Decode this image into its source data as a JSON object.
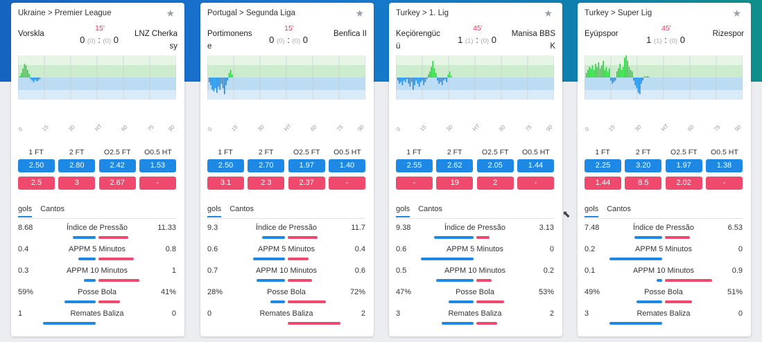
{
  "cards": [
    {
      "league": "Ukraine",
      "competition": "Premier League",
      "minute": "15'",
      "home": "Vorskla",
      "away": "LNZ Cherkasy",
      "score_home": "0",
      "score_away": "0",
      "ht_home": "0",
      "ht_away": "0",
      "odds_headers": [
        "1 FT",
        "2 FT",
        "O2.5 FT",
        "O0.5 HT"
      ],
      "odds_blue": [
        "2.50",
        "2.80",
        "2.42",
        "1.53"
      ],
      "odds_red": [
        "2.5",
        "3",
        "2.67",
        "-"
      ],
      "tabs": [
        "gols",
        "Cantos"
      ],
      "stats": [
        {
          "left": "8.68",
          "label": "Índice de Pressão",
          "right": "11.33",
          "lf": 0.43,
          "rf": 0.57
        },
        {
          "left": "0.4",
          "label": "APPM 5 Minutos",
          "right": "0.8",
          "lf": 0.33,
          "rf": 0.67
        },
        {
          "left": "0.3",
          "label": "APPM 10 Minutos",
          "right": "1",
          "lf": 0.23,
          "rf": 0.77
        },
        {
          "left": "59%",
          "label": "Posse Bola",
          "right": "41%",
          "lf": 0.59,
          "rf": 0.41
        },
        {
          "left": "1",
          "label": "Remates Baliza",
          "right": "0",
          "lf": 1.0,
          "rf": 0.0
        }
      ],
      "pressure": [
        2,
        6,
        12,
        18,
        16,
        10,
        5,
        -2,
        -4,
        -6,
        -3,
        -5,
        -4,
        -2
      ]
    },
    {
      "league": "Portugal",
      "competition": "Segunda Liga",
      "minute": "15'",
      "home": "Portimonense",
      "away": "Benfica II",
      "score_home": "0",
      "score_away": "0",
      "ht_home": "0",
      "ht_away": "0",
      "odds_headers": [
        "1 FT",
        "2 FT",
        "O2.5 FT",
        "O0.5 HT"
      ],
      "odds_blue": [
        "2.50",
        "2.70",
        "1.97",
        "1.40"
      ],
      "odds_red": [
        "3.1",
        "2.3",
        "2.37",
        "-"
      ],
      "tabs": [
        "gols",
        "Cantos"
      ],
      "stats": [
        {
          "left": "9.3",
          "label": "Índice de Pressão",
          "right": "11.7",
          "lf": 0.44,
          "rf": 0.56
        },
        {
          "left": "0.6",
          "label": "APPM 5 Minutos",
          "right": "0.4",
          "lf": 0.6,
          "rf": 0.4
        },
        {
          "left": "0.7",
          "label": "APPM 10 Minutos",
          "right": "0.6",
          "lf": 0.54,
          "rf": 0.46
        },
        {
          "left": "28%",
          "label": "Posse Bola",
          "right": "72%",
          "lf": 0.28,
          "rf": 0.72
        },
        {
          "left": "0",
          "label": "Remates Baliza",
          "right": "2",
          "lf": 0.0,
          "rf": 1.0
        }
      ],
      "pressure": [
        -6,
        -10,
        -16,
        -18,
        -14,
        -20,
        -12,
        -16,
        -8,
        -14,
        -22,
        -10,
        -4,
        6,
        10,
        4
      ]
    },
    {
      "league": "Turkey",
      "competition": "1. Lig",
      "minute": "45'",
      "home": "Keçiörengücü",
      "away": "Manisa BBSK",
      "score_home": "1",
      "score_away": "0",
      "ht_home": "1",
      "ht_away": "0",
      "odds_headers": [
        "1 FT",
        "2 FT",
        "O2.5 FT",
        "O0.5 HT"
      ],
      "odds_blue": [
        "2.55",
        "2.62",
        "2.05",
        "1.44"
      ],
      "odds_red": [
        "-",
        "19",
        "2",
        "-"
      ],
      "tabs": [
        "gols",
        "Cantos"
      ],
      "stats": [
        {
          "left": "9.38",
          "label": "Índice de Pressão",
          "right": "3.13",
          "lf": 0.75,
          "rf": 0.25
        },
        {
          "left": "0.6",
          "label": "APPM 5 Minutos",
          "right": "0",
          "lf": 1.0,
          "rf": 0.0
        },
        {
          "left": "0.5",
          "label": "APPM 10 Minutos",
          "right": "0.2",
          "lf": 0.71,
          "rf": 0.29
        },
        {
          "left": "47%",
          "label": "Posse Bola",
          "right": "53%",
          "lf": 0.47,
          "rf": 0.53
        },
        {
          "left": "3",
          "label": "Remates Baliza",
          "right": "2",
          "lf": 0.6,
          "rf": 0.4
        }
      ],
      "pressure": [
        -4,
        -8,
        -6,
        -10,
        -4,
        -6,
        -2,
        -8,
        -12,
        -6,
        -16,
        -10,
        -4,
        -8,
        -12,
        -6,
        -4,
        -10,
        -6,
        -2,
        4,
        8,
        14,
        22,
        12,
        6,
        -4,
        -8,
        -6,
        -10,
        -4,
        -2,
        -6,
        4,
        8,
        2
      ]
    },
    {
      "league": "Turkey",
      "competition": "Super Lig",
      "minute": "45'",
      "home": "Eyüpspor",
      "away": "Rizespor",
      "score_home": "1",
      "score_away": "0",
      "ht_home": "1",
      "ht_away": "0",
      "odds_headers": [
        "1 FT",
        "2 FT",
        "O2.5 FT",
        "O0.5 HT"
      ],
      "odds_blue": [
        "2.25",
        "3.20",
        "1.97",
        "1.38"
      ],
      "odds_red": [
        "1.44",
        "8.5",
        "2.02",
        "-"
      ],
      "tabs": [
        "gols",
        "Cantos"
      ],
      "stats": [
        {
          "left": "7.48",
          "label": "Índice de Pressão",
          "right": "6.53",
          "lf": 0.53,
          "rf": 0.47
        },
        {
          "left": "0.2",
          "label": "APPM 5 Minutos",
          "right": "0",
          "lf": 1.0,
          "rf": 0.0
        },
        {
          "left": "0.1",
          "label": "APPM 10 Minutos",
          "right": "0.9",
          "lf": 0.1,
          "rf": 0.9
        },
        {
          "left": "49%",
          "label": "Posse Bola",
          "right": "51%",
          "lf": 0.49,
          "rf": 0.51
        },
        {
          "left": "3",
          "label": "Remates Baliza",
          "right": "0",
          "lf": 1.0,
          "rf": 0.0
        }
      ],
      "pressure": [
        6,
        10,
        14,
        12,
        16,
        10,
        18,
        14,
        20,
        12,
        16,
        22,
        10,
        14,
        8,
        12,
        -4,
        -8,
        -6,
        -4,
        8,
        12,
        18,
        10,
        14,
        26,
        34,
        22,
        14,
        10,
        8,
        -4,
        -10,
        -14,
        -20,
        -22,
        -8,
        -4,
        2,
        1,
        2,
        1
      ]
    }
  ],
  "chart_axis_labels": [
    "0",
    "15",
    "30",
    "HT",
    "60",
    "75",
    "90"
  ],
  "colors": {
    "blue": "#1e88e5",
    "red": "#ef4a6e",
    "minute": "#e8355c",
    "green": "#2ecc40"
  }
}
